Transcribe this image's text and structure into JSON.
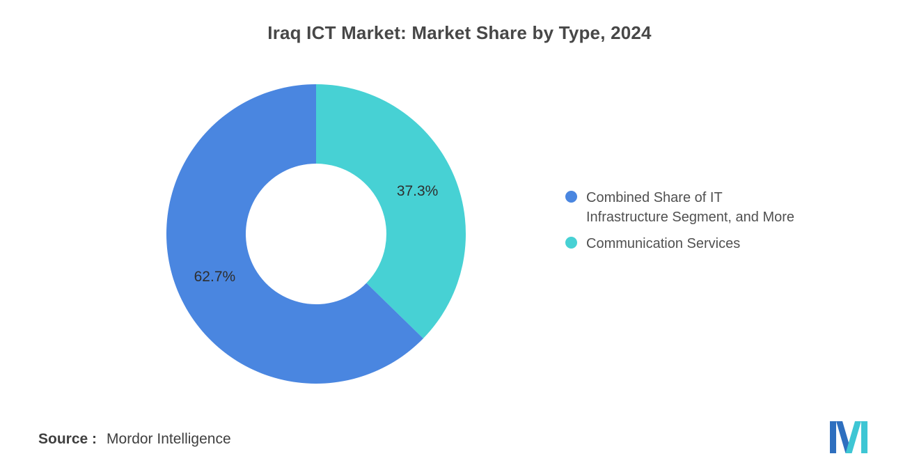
{
  "title": "Iraq ICT Market: Market Share by Type, 2024",
  "source": {
    "label": "Source :",
    "value": "Mordor Intelligence"
  },
  "legend": [
    {
      "label": "Combined Share of IT\nInfrastructure Segment, and More",
      "color": "#4A86E0"
    },
    {
      "label": "Communication Services",
      "color": "#47D1D4"
    }
  ],
  "logo": {
    "name": "mordor-intelligence-logo",
    "blue": "#2E6FBF",
    "teal": "#3EC6D4"
  },
  "chart_data": {
    "type": "pie",
    "subtype": "donut",
    "title": "Iraq ICT Market: Market Share by Type, 2024",
    "categories": [
      "Communication Services",
      "Combined Share of IT Infrastructure Segment, and More"
    ],
    "values": [
      37.3,
      62.7
    ],
    "slices": [
      {
        "name": "Communication Services",
        "value": 37.3,
        "label": "37.3%",
        "color": "#47D1D4"
      },
      {
        "name": "Combined Share of IT Infrastructure Segment, and More",
        "value": 62.7,
        "label": "62.7%",
        "color": "#4A86E0"
      }
    ],
    "start_angle_deg": 0,
    "direction": "clockwise",
    "donut_hole_ratio": 0.47,
    "legend_position": "right",
    "value_labels": "inside"
  }
}
